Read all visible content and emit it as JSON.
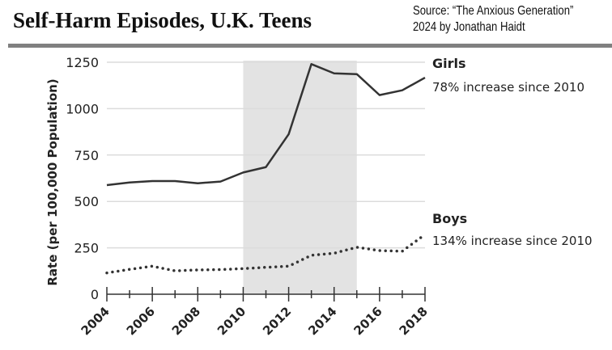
{
  "header": {
    "title": "Self-Harm Episodes, U.K. Teens",
    "source_line1": "Source: “The Anxious Generation”",
    "source_line2": "2024 by Jonathan Haidt"
  },
  "chart_data": {
    "type": "line",
    "title": "Self-Harm Episodes, U.K. Teens",
    "ylabel": "Rate (per 100,000 Population)",
    "xlabel": "",
    "x": [
      2004,
      2005,
      2006,
      2007,
      2008,
      2009,
      2010,
      2011,
      2012,
      2013,
      2014,
      2015,
      2016,
      2017,
      2018
    ],
    "xticks": [
      "2004",
      "2006",
      "2008",
      "2010",
      "2012",
      "2014",
      "2016",
      "2018"
    ],
    "yticks": [
      "0",
      "250",
      "500",
      "750",
      "1000",
      "1250"
    ],
    "ylim": [
      0,
      1250
    ],
    "xlim": [
      2004,
      2018
    ],
    "grid": "horizontal",
    "shaded_region": [
      2010,
      2015
    ],
    "series": [
      {
        "name": "Girls",
        "annotation": "78% increase since 2010",
        "style": "solid",
        "color": "#333333",
        "values": [
          588,
          602,
          610,
          610,
          598,
          607,
          656,
          685,
          862,
          1240,
          1190,
          1186,
          1073,
          1099,
          1167
        ]
      },
      {
        "name": "Boys",
        "annotation": "134% increase since 2010",
        "style": "dotted",
        "color": "#333333",
        "values": [
          115,
          134,
          151,
          126,
          131,
          133,
          138,
          145,
          151,
          210,
          221,
          253,
          235,
          232,
          322
        ]
      }
    ]
  }
}
